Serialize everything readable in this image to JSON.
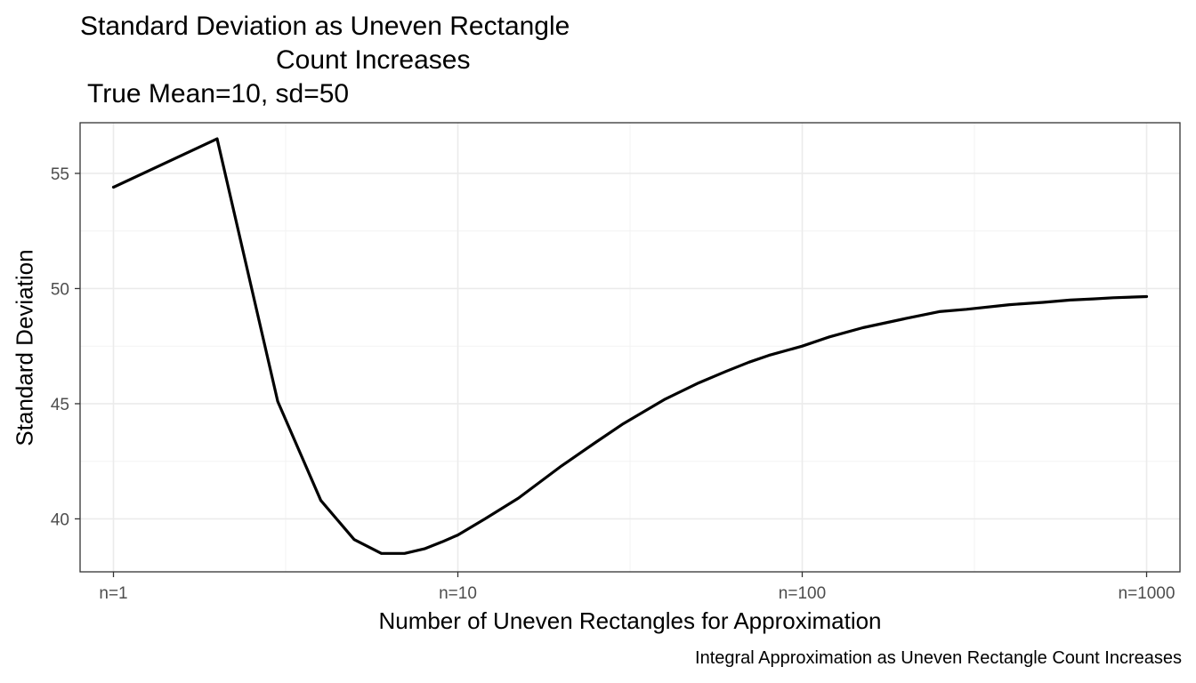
{
  "chart_data": {
    "type": "line",
    "title_lines": [
      "Standard Deviation as Uneven Rectangle",
      "Count Increases",
      "True Mean=10, sd=50"
    ],
    "xlabel": "Number of Uneven Rectangles for Approximation",
    "ylabel": "Standard Deviation",
    "caption": "Integral Approximation as Uneven Rectangle Count Increases",
    "x_scale": "log10",
    "xlim": [
      0.8,
      1250
    ],
    "ylim": [
      37.7,
      57.2
    ],
    "x_ticks": [
      {
        "value": 1,
        "label": "n=1"
      },
      {
        "value": 10,
        "label": "n=10"
      },
      {
        "value": 100,
        "label": "n=100"
      },
      {
        "value": 1000,
        "label": "n=1000"
      }
    ],
    "y_ticks": [
      {
        "value": 40,
        "label": "40"
      },
      {
        "value": 45,
        "label": "45"
      },
      {
        "value": 50,
        "label": "50"
      },
      {
        "value": 55,
        "label": "55"
      }
    ],
    "grid": true,
    "line_color": "#000000",
    "series": [
      {
        "x": [
          1,
          2,
          3,
          4,
          5,
          6,
          7,
          8,
          9,
          10,
          12,
          15,
          20,
          25,
          30,
          40,
          50,
          60,
          70,
          80,
          100,
          120,
          150,
          200,
          250,
          300,
          400,
          500,
          600,
          700,
          800,
          1000
        ],
        "y": [
          54.4,
          56.5,
          45.1,
          40.8,
          39.1,
          38.5,
          38.5,
          38.7,
          39.0,
          39.3,
          40.0,
          40.9,
          42.3,
          43.3,
          44.1,
          45.2,
          45.9,
          46.4,
          46.8,
          47.1,
          47.5,
          47.9,
          48.3,
          48.7,
          49.0,
          49.1,
          49.3,
          49.4,
          49.5,
          49.55,
          49.6,
          49.65
        ]
      }
    ]
  }
}
